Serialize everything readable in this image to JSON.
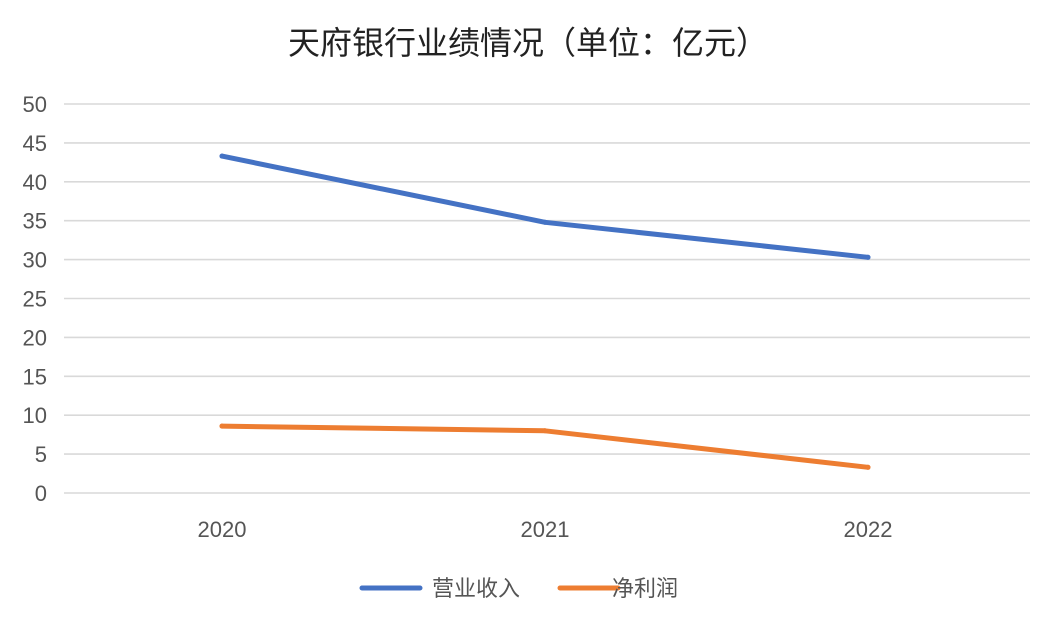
{
  "chart_data": {
    "type": "line",
    "title": "天府银行业绩情况（单位：亿元）",
    "xlabel": "",
    "ylabel": "",
    "categories": [
      "2020",
      "2021",
      "2022"
    ],
    "ylim": [
      0,
      50
    ],
    "yticks": [
      0,
      5,
      10,
      15,
      20,
      25,
      30,
      35,
      40,
      45,
      50
    ],
    "grid": true,
    "legend_position": "bottom",
    "series": [
      {
        "name": "营业收入",
        "values": [
          43.3,
          34.8,
          30.3
        ],
        "color": "#4472C4"
      },
      {
        "name": "净利润",
        "values": [
          8.6,
          8.0,
          3.3
        ],
        "color": "#ED7D31"
      }
    ]
  }
}
